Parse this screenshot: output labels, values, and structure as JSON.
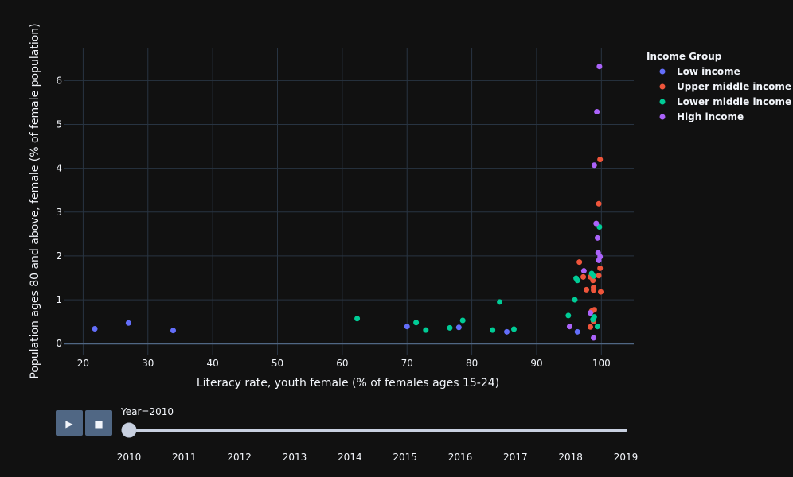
{
  "colors": {
    "background": "#111111",
    "grid": "#283442",
    "zeroline": "#506784",
    "text": "#f2f5fa",
    "button": "#506784",
    "slider_track": "#c8d0e0"
  },
  "controls": {
    "play_icon": "play-icon",
    "stop_icon": "stop-icon",
    "play_symbol": "▶",
    "stop_symbol": "■",
    "current_label": "Year=2010",
    "years": [
      "2010",
      "2011",
      "2012",
      "2013",
      "2014",
      "2015",
      "2016",
      "2017",
      "2018",
      "2019"
    ],
    "selected_index": 0
  },
  "chart_data": {
    "type": "scatter",
    "xlabel": "Literacy rate, youth female (% of females ages 15-24)",
    "ylabel": "Population ages 80 and above, female (% of female population)",
    "xlim": [
      17,
      105
    ],
    "ylim": [
      -0.25,
      6.75
    ],
    "xticks": [
      20,
      30,
      40,
      50,
      60,
      70,
      80,
      90,
      100
    ],
    "yticks": [
      0,
      1,
      2,
      3,
      4,
      5,
      6
    ],
    "grid": true,
    "legend_title": "Income Group",
    "legend_position": "top-right",
    "series": [
      {
        "name": "Low income",
        "color": "#636efa",
        "points": [
          [
            21.8,
            0.34
          ],
          [
            27,
            0.47
          ],
          [
            33.9,
            0.3
          ],
          [
            70,
            0.39
          ],
          [
            78,
            0.37
          ],
          [
            85.4,
            0.27
          ],
          [
            96.3,
            0.27
          ]
        ]
      },
      {
        "name": "Upper middle income",
        "color": "#ef553b",
        "points": [
          [
            99.8,
            4.2
          ],
          [
            99.6,
            3.19
          ],
          [
            96.6,
            1.86
          ],
          [
            99.8,
            1.72
          ],
          [
            97.2,
            1.52
          ],
          [
            98.3,
            1.52
          ],
          [
            98.7,
            1.44
          ],
          [
            99.6,
            1.55
          ],
          [
            97.7,
            1.23
          ],
          [
            98.8,
            1.22
          ],
          [
            98.8,
            1.28
          ],
          [
            99.9,
            1.18
          ],
          [
            98.9,
            0.77
          ],
          [
            98.5,
            0.74
          ],
          [
            98.8,
            0.51
          ],
          [
            98.3,
            0.38
          ]
        ]
      },
      {
        "name": "Lower middle income",
        "color": "#00cc96",
        "points": [
          [
            62.3,
            0.57
          ],
          [
            71.4,
            0.48
          ],
          [
            72.9,
            0.31
          ],
          [
            76.6,
            0.36
          ],
          [
            78.6,
            0.53
          ],
          [
            83.2,
            0.31
          ],
          [
            84.3,
            0.95
          ],
          [
            86.5,
            0.33
          ],
          [
            94.9,
            0.64
          ],
          [
            95.9,
            1.0
          ],
          [
            96.1,
            1.49
          ],
          [
            96.3,
            1.44
          ],
          [
            98.5,
            1.6
          ],
          [
            98.8,
            1.54
          ],
          [
            99.7,
            2.66
          ],
          [
            99.4,
            0.39
          ],
          [
            98.9,
            0.61
          ],
          [
            98.7,
            0.55
          ]
        ]
      },
      {
        "name": "High income",
        "color": "#ab63fa",
        "points": [
          [
            99.7,
            6.32
          ],
          [
            99.3,
            5.29
          ],
          [
            98.9,
            4.07
          ],
          [
            99.2,
            2.74
          ],
          [
            99.4,
            2.41
          ],
          [
            99.5,
            2.07
          ],
          [
            99.8,
            1.98
          ],
          [
            99.6,
            1.9
          ],
          [
            97.3,
            1.66
          ],
          [
            98.3,
            0.7
          ],
          [
            95.1,
            0.39
          ],
          [
            98.8,
            0.13
          ]
        ]
      }
    ]
  }
}
